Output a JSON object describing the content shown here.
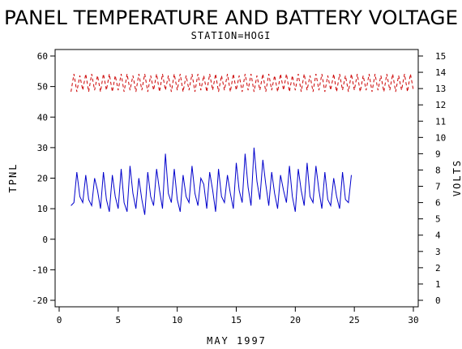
{
  "chart_data": {
    "type": "line",
    "title": "PANEL TEMPERATURE AND BATTERY VOLTAGE",
    "subtitle": "STATION=HOGI",
    "xlabel": "MAY 1997",
    "ylabel_left": "TPNL",
    "ylabel_right": "VOLTS",
    "xlim": [
      0,
      30
    ],
    "ylim_left": [
      -20,
      60
    ],
    "ylim_right": [
      0,
      15
    ],
    "x_ticks": [
      0,
      5,
      10,
      15,
      20,
      25,
      30
    ],
    "y_left_ticks": [
      -20,
      -10,
      0,
      10,
      20,
      30,
      40,
      50,
      60
    ],
    "y_right_ticks": [
      0,
      1,
      2,
      3,
      4,
      5,
      6,
      7,
      8,
      9,
      10,
      11,
      12,
      13,
      14,
      15
    ],
    "grid": false,
    "x_start": 1,
    "x_step": 0.25,
    "series": [
      {
        "axis": "left",
        "color": "#0000cc",
        "style": "solid",
        "values": [
          11,
          12,
          22,
          14,
          12,
          21,
          13,
          11,
          20,
          16,
          10,
          22,
          13,
          9,
          21,
          14,
          10,
          23,
          12,
          9,
          24,
          15,
          10,
          20,
          13,
          8,
          22,
          14,
          11,
          23,
          16,
          10,
          28,
          15,
          12,
          23,
          13,
          9,
          21,
          14,
          12,
          24,
          15,
          11,
          20,
          18,
          10,
          22,
          16,
          9,
          23,
          14,
          12,
          21,
          15,
          10,
          25,
          16,
          12,
          28,
          17,
          11,
          30,
          19,
          13,
          26,
          18,
          11,
          22,
          15,
          10,
          21,
          16,
          12,
          24,
          14,
          9,
          23,
          16,
          11,
          25,
          14,
          12,
          24,
          16,
          10,
          22,
          13,
          11,
          20,
          14,
          10,
          22,
          13,
          12,
          21
        ]
      },
      {
        "axis": "right",
        "color": "#cc0000",
        "style": "dashed",
        "values": [
          12.8,
          13.9,
          12.8,
          13.8,
          12.9,
          13.9,
          12.8,
          13.9,
          12.9,
          13.8,
          12.8,
          13.9,
          12.9,
          13.9,
          12.8,
          13.8,
          12.9,
          13.9,
          12.8,
          13.9,
          12.9,
          13.8,
          12.8,
          13.9,
          12.9,
          13.9,
          12.8,
          13.8,
          12.9,
          13.9,
          12.8,
          13.9,
          12.9,
          13.8,
          12.8,
          13.9,
          12.9,
          13.9,
          12.8,
          13.8,
          12.9,
          13.9,
          12.8,
          13.9,
          12.9,
          13.8,
          12.8,
          13.9,
          12.9,
          13.9,
          12.8,
          13.8,
          12.9,
          13.9,
          12.8,
          13.9,
          12.9,
          13.8,
          12.8,
          13.9,
          12.9,
          13.9,
          12.8,
          13.8,
          12.9,
          13.9,
          12.8,
          13.9,
          12.9,
          13.8,
          12.8,
          13.9,
          12.9,
          13.9,
          12.8,
          13.8,
          12.9,
          13.9,
          12.8,
          13.9,
          12.9,
          13.8,
          12.8,
          13.9,
          12.9,
          13.9,
          12.8,
          13.8,
          12.9,
          13.9,
          12.8,
          13.9,
          12.9,
          13.8,
          12.8,
          13.9,
          12.9,
          13.9,
          12.8,
          13.8,
          12.9,
          13.9,
          12.8,
          13.9,
          12.9,
          13.8,
          12.8,
          13.9,
          12.9,
          13.9,
          12.8,
          13.8,
          12.9,
          13.9,
          12.8,
          13.9,
          12.9
        ]
      }
    ]
  }
}
